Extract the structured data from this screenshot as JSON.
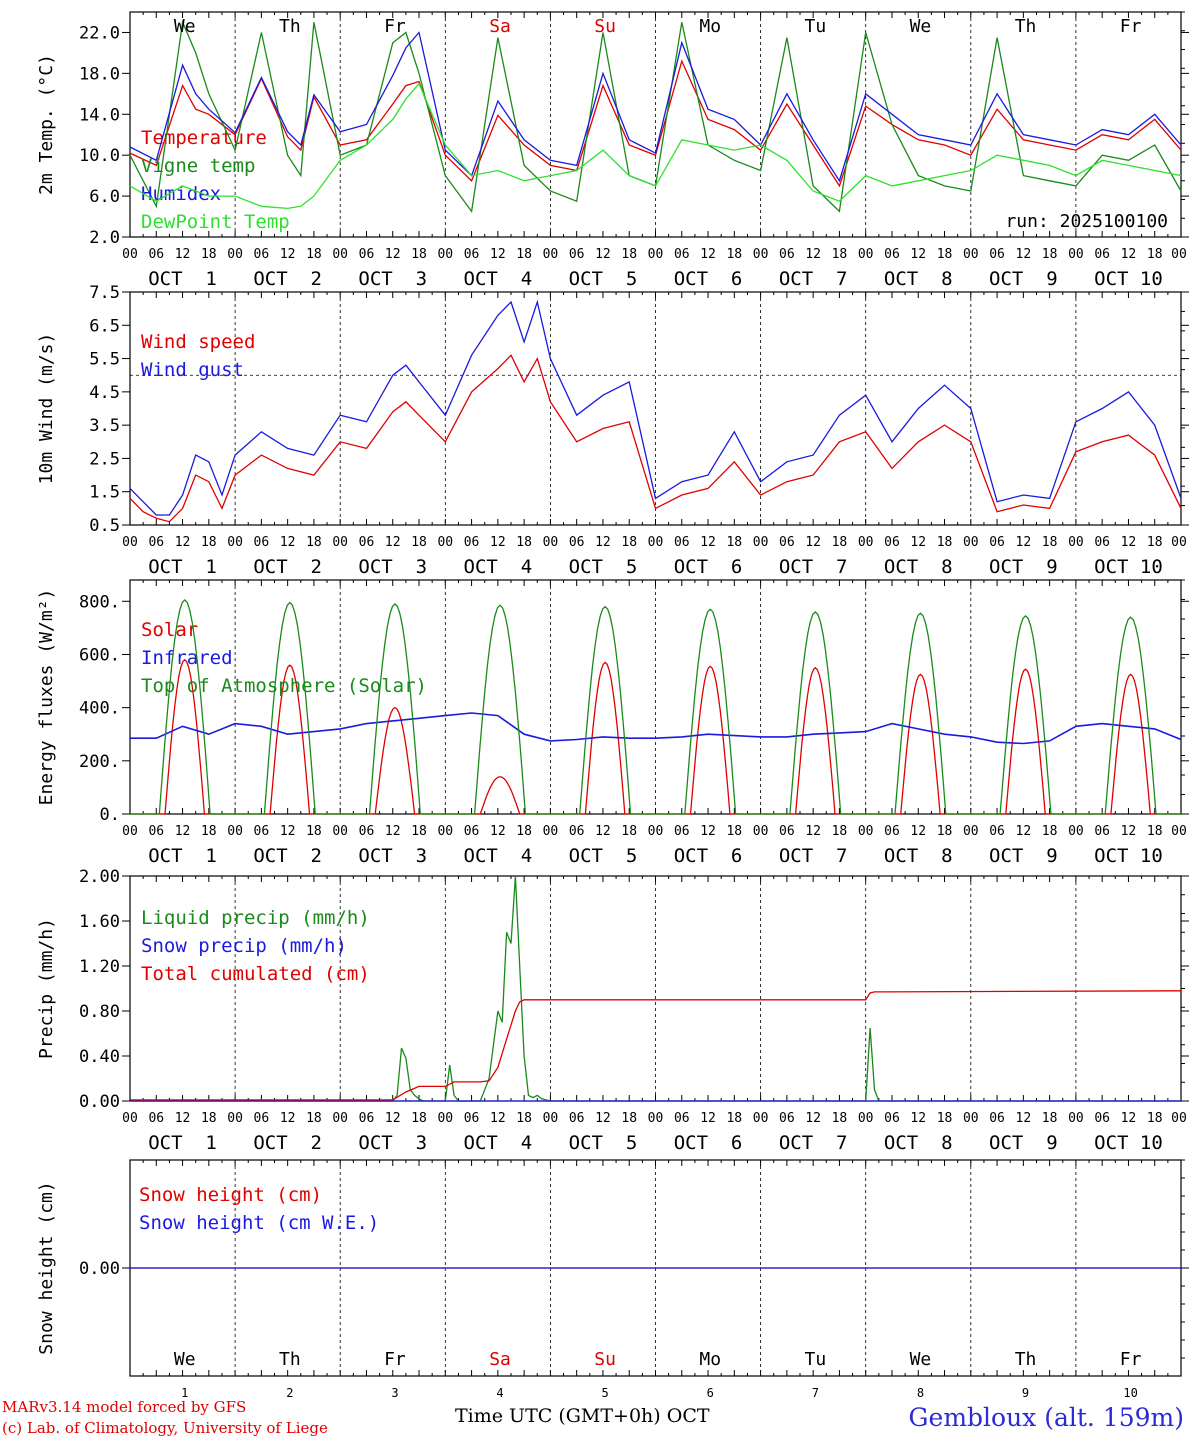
{
  "header": {
    "station_label": "Gembloux (alt. 159m)",
    "credit_model": "MARv3.14 model forced by GFS",
    "credit_lab": "(c) Lab. of Climatology, University of Liege",
    "x_title": "Time UTC (GMT+0h)",
    "x_month": "OCT"
  },
  "colors": {
    "red": "#e00000",
    "dark_green": "#1a8a1a",
    "blue": "#1a1ae0",
    "light_green": "#30e030",
    "weekend": "#e00000"
  },
  "days": {
    "weekday_labels": [
      "We",
      "Th",
      "Fr",
      "Sa",
      "Su",
      "Mo",
      "Tu",
      "We",
      "Th",
      "Fr"
    ],
    "weekend_index": [
      3,
      4
    ],
    "date_labels": [
      "OCT  1",
      "OCT  2",
      "OCT  3",
      "OCT  4",
      "OCT  5",
      "OCT  6",
      "OCT  7",
      "OCT  8",
      "OCT  9",
      "OCT 10"
    ],
    "day_numbers": [
      "1",
      "2",
      "3",
      "4",
      "5",
      "6",
      "7",
      "8",
      "9",
      "10"
    ],
    "hour_labels": [
      "00",
      "06",
      "12",
      "18"
    ],
    "final_hour_label": "00"
  },
  "chart_data": [
    {
      "type": "line",
      "ylabel": "2m Temp. (°C)",
      "ylim": [
        2,
        24
      ],
      "yticks": [
        "2.0",
        "6.0",
        "10.0",
        "14.0",
        "18.0",
        "22.0"
      ],
      "ytick_values": [
        2,
        6,
        10,
        14,
        18,
        22
      ],
      "run_label": "run: 2025100100",
      "x_unit": "hours since OCT 1 00 UTC",
      "x": [
        0,
        6,
        12,
        15,
        18,
        24,
        30,
        36,
        39,
        42,
        48,
        54,
        60,
        63,
        66,
        72,
        78,
        84,
        90,
        96,
        102,
        108,
        114,
        120,
        126,
        132,
        138,
        144,
        150,
        156,
        162,
        168,
        174,
        180,
        186,
        192,
        198,
        204,
        210,
        216,
        222,
        228,
        234,
        240
      ],
      "series": [
        {
          "name": "Temperature",
          "color": "#e00000",
          "values": [
            10.2,
            9.0,
            16.8,
            14.5,
            14.0,
            12.0,
            17.5,
            11.8,
            10.5,
            15.7,
            11.0,
            11.5,
            15.0,
            16.8,
            17.2,
            10.0,
            7.5,
            13.9,
            11.0,
            9.0,
            8.5,
            16.8,
            11.0,
            10.0,
            19.2,
            13.5,
            12.5,
            10.5,
            15.0,
            11.0,
            7.0,
            14.8,
            13.0,
            11.5,
            11.0,
            10.0,
            14.5,
            11.5,
            11.0,
            10.5,
            12.0,
            11.5,
            13.5,
            10.5
          ]
        },
        {
          "name": "Vigne temp",
          "color": "#1a8a1a",
          "values": [
            10.0,
            5.0,
            23.0,
            20.0,
            16.0,
            10.5,
            22.0,
            10.0,
            8.0,
            23.0,
            10.0,
            11.0,
            21.0,
            22.0,
            18.0,
            8.0,
            4.5,
            21.5,
            9.0,
            6.5,
            5.5,
            22.0,
            8.0,
            7.0,
            23.0,
            11.0,
            9.5,
            8.5,
            21.5,
            7.0,
            4.5,
            22.0,
            13.0,
            8.0,
            7.0,
            6.5,
            21.5,
            8.0,
            7.5,
            7.0,
            10.0,
            9.5,
            11.0,
            6.5
          ]
        },
        {
          "name": "Humidex",
          "color": "#1a1ae0",
          "values": [
            10.8,
            9.5,
            18.8,
            16.0,
            14.5,
            12.2,
            17.6,
            12.3,
            11.0,
            15.9,
            12.3,
            13.0,
            17.8,
            20.5,
            22.0,
            10.5,
            8.0,
            15.3,
            11.5,
            9.5,
            9.0,
            18.0,
            11.5,
            10.2,
            21.0,
            14.5,
            13.5,
            11.0,
            16.0,
            11.5,
            7.5,
            16.0,
            14.0,
            12.0,
            11.5,
            11.0,
            16.0,
            12.0,
            11.5,
            11.0,
            12.5,
            12.0,
            14.0,
            11.0
          ]
        },
        {
          "name": "DewPoint Temp",
          "color": "#30e030",
          "values": [
            7.0,
            5.5,
            7.0,
            6.5,
            6.0,
            6.0,
            5.0,
            4.8,
            5.0,
            6.0,
            9.5,
            11.0,
            13.5,
            15.5,
            17.0,
            11.0,
            8.0,
            8.5,
            7.5,
            8.0,
            8.5,
            10.5,
            8.0,
            7.0,
            11.5,
            11.0,
            10.5,
            11.0,
            9.5,
            6.5,
            5.5,
            8.0,
            7.0,
            7.5,
            8.0,
            8.5,
            10.0,
            9.5,
            9.0,
            8.0,
            9.5,
            9.0,
            8.5,
            8.0
          ]
        }
      ]
    },
    {
      "type": "line",
      "ylabel": "10m Wind (m/s)",
      "ylim": [
        0.5,
        7.5
      ],
      "yticks": [
        "0.5",
        "1.5",
        "2.5",
        "3.5",
        "4.5",
        "5.5",
        "6.5",
        "7.5"
      ],
      "ytick_values": [
        0.5,
        1.5,
        2.5,
        3.5,
        4.5,
        5.5,
        6.5,
        7.5
      ],
      "reference_line": 5.0,
      "x_unit": "hours since OCT 1 00 UTC",
      "x": [
        0,
        3,
        6,
        9,
        12,
        15,
        18,
        21,
        24,
        30,
        36,
        42,
        48,
        54,
        60,
        63,
        66,
        72,
        78,
        84,
        87,
        90,
        93,
        96,
        102,
        108,
        114,
        120,
        126,
        132,
        138,
        144,
        150,
        156,
        162,
        168,
        174,
        180,
        186,
        192,
        198,
        204,
        210,
        216,
        222,
        228,
        234,
        240
      ],
      "series": [
        {
          "name": "Wind speed",
          "color": "#e00000",
          "values": [
            1.3,
            0.9,
            0.7,
            0.6,
            1.0,
            2.0,
            1.8,
            1.0,
            2.0,
            2.6,
            2.2,
            2.0,
            3.0,
            2.8,
            3.9,
            4.2,
            3.8,
            3.0,
            4.5,
            5.2,
            5.6,
            4.8,
            5.5,
            4.2,
            3.0,
            3.4,
            3.6,
            1.0,
            1.4,
            1.6,
            2.4,
            1.4,
            1.8,
            2.0,
            3.0,
            3.3,
            2.2,
            3.0,
            3.5,
            3.0,
            0.9,
            1.1,
            1.0,
            2.7,
            3.0,
            3.2,
            2.6,
            1.0
          ]
        },
        {
          "name": "Wind gust",
          "color": "#1a1ae0",
          "values": [
            1.6,
            1.2,
            0.8,
            0.8,
            1.4,
            2.6,
            2.4,
            1.4,
            2.6,
            3.3,
            2.8,
            2.6,
            3.8,
            3.6,
            5.0,
            5.3,
            4.8,
            3.8,
            5.6,
            6.8,
            7.2,
            6.0,
            7.2,
            5.5,
            3.8,
            4.4,
            4.8,
            1.3,
            1.8,
            2.0,
            3.3,
            1.8,
            2.4,
            2.6,
            3.8,
            4.4,
            3.0,
            4.0,
            4.7,
            4.0,
            1.2,
            1.4,
            1.3,
            3.6,
            4.0,
            4.5,
            3.5,
            1.3
          ]
        }
      ]
    },
    {
      "type": "line",
      "ylabel": "Energy fluxes (W/m²)",
      "ylim": [
        0,
        880
      ],
      "yticks": [
        "0.",
        "200.",
        "400.",
        "600.",
        "800."
      ],
      "ytick_values": [
        0,
        200,
        400,
        600,
        800
      ],
      "x_unit": "hours since OCT 1 00 UTC",
      "series": [
        {
          "name": "Solar",
          "color": "#e00000",
          "daily_peak": [
            580,
            560,
            400,
            140,
            570,
            555,
            550,
            525,
            545,
            525
          ]
        },
        {
          "name": "Infrared",
          "color": "#1a1ae0",
          "x": [
            0,
            6,
            12,
            18,
            24,
            30,
            36,
            42,
            48,
            54,
            60,
            66,
            72,
            78,
            84,
            90,
            96,
            102,
            108,
            114,
            120,
            126,
            132,
            138,
            144,
            150,
            156,
            162,
            168,
            174,
            180,
            186,
            192,
            198,
            204,
            210,
            216,
            222,
            228,
            234,
            240
          ],
          "values": [
            285,
            285,
            330,
            300,
            340,
            330,
            300,
            310,
            320,
            340,
            350,
            360,
            370,
            380,
            370,
            300,
            275,
            280,
            290,
            285,
            285,
            290,
            300,
            295,
            290,
            290,
            300,
            305,
            310,
            340,
            320,
            300,
            290,
            270,
            265,
            275,
            330,
            340,
            330,
            320,
            280
          ]
        },
        {
          "name": "Top of Atmosphere (Solar)",
          "color": "#1a8a1a",
          "daily_peak": [
            805,
            795,
            790,
            785,
            780,
            770,
            760,
            755,
            745,
            740
          ]
        }
      ]
    },
    {
      "type": "line",
      "ylabel": "Precip (mm/h)",
      "ylim": [
        0,
        2.0
      ],
      "yticks": [
        "0.00",
        "0.40",
        "0.80",
        "1.20",
        "1.60",
        "2.00"
      ],
      "ytick_values": [
        0,
        0.4,
        0.8,
        1.2,
        1.6,
        2.0
      ],
      "x_unit": "hours since OCT 1 00 UTC",
      "series": [
        {
          "name": "Liquid precip (mm/h)",
          "color": "#1a8a1a",
          "x": [
            0,
            60,
            61,
            62,
            63,
            64,
            65,
            66,
            67,
            72,
            73,
            74,
            75,
            76,
            80,
            82,
            84,
            85,
            86,
            87,
            88,
            89,
            90,
            91,
            92,
            93,
            94,
            96,
            168,
            169,
            170,
            171,
            240
          ],
          "values": [
            0,
            0,
            0.05,
            0.47,
            0.38,
            0.1,
            0.05,
            0.02,
            0,
            0,
            0.32,
            0.05,
            0,
            0,
            0,
            0.2,
            0.8,
            0.7,
            1.5,
            1.4,
            2.0,
            1.2,
            0.4,
            0.05,
            0.03,
            0.05,
            0.02,
            0,
            0,
            0.65,
            0.1,
            0,
            0
          ]
        },
        {
          "name": "Snow precip (mm/h)",
          "color": "#1a1ae0",
          "x": [
            0,
            240
          ],
          "values": [
            0,
            0
          ]
        },
        {
          "name": "Total cumulated (cm)",
          "color": "#e00000",
          "x": [
            0,
            60,
            63,
            66,
            72,
            74,
            80,
            82,
            84,
            86,
            88,
            89,
            90,
            96,
            168,
            169,
            170,
            240
          ],
          "values": [
            0.01,
            0.01,
            0.08,
            0.13,
            0.13,
            0.17,
            0.17,
            0.18,
            0.3,
            0.55,
            0.8,
            0.88,
            0.9,
            0.9,
            0.9,
            0.96,
            0.97,
            0.98
          ]
        }
      ]
    },
    {
      "type": "line",
      "ylabel": "Snow height (cm)",
      "ylim": [
        -1,
        1
      ],
      "yticks": [
        "0.00"
      ],
      "ytick_values": [
        0
      ],
      "x_unit": "hours since OCT 1 00 UTC",
      "series": [
        {
          "name": "Snow height (cm)",
          "color": "#e00000",
          "x": [
            0,
            240
          ],
          "values": [
            0,
            0
          ]
        },
        {
          "name": "Snow height (cm W.E.)",
          "color": "#1a1ae0",
          "x": [
            0,
            240
          ],
          "values": [
            0,
            0
          ]
        }
      ]
    }
  ]
}
